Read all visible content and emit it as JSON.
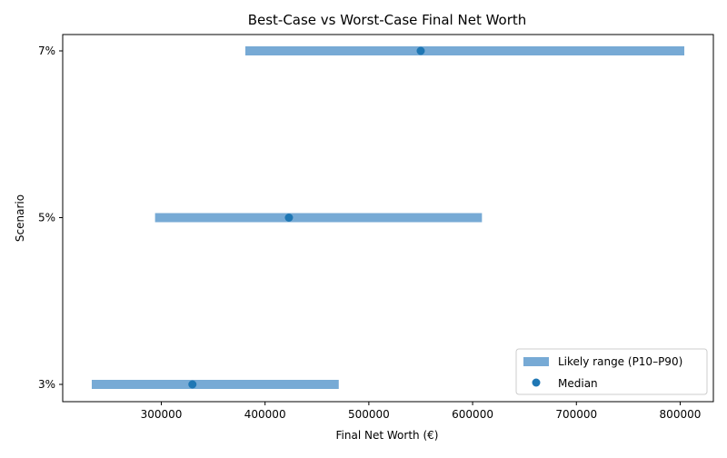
{
  "chart_data": {
    "type": "range-dot",
    "title": "Best-Case vs Worst-Case Final Net Worth",
    "xlabel": "Final Net Worth (€)",
    "ylabel": "Scenario",
    "xlim": [
      205000,
      832000
    ],
    "x_ticks": [
      300000,
      400000,
      500000,
      600000,
      700000,
      800000
    ],
    "x_tick_labels": [
      "300000",
      "400000",
      "500000",
      "600000",
      "700000",
      "800000"
    ],
    "categories": [
      "3%",
      "5%",
      "7%"
    ],
    "series": [
      {
        "name": "Likely range (P10–P90)",
        "kind": "range",
        "low": [
          233000,
          294000,
          381000
        ],
        "high": [
          471000,
          609000,
          804000
        ],
        "color": "#77aad5"
      },
      {
        "name": "Median",
        "kind": "point",
        "values": [
          330000,
          423000,
          550000
        ],
        "color": "#1f77b4"
      }
    ],
    "legend": {
      "position": "lower-right",
      "entries": [
        "Likely range (P10–P90)",
        "Median"
      ]
    },
    "grid": false
  }
}
